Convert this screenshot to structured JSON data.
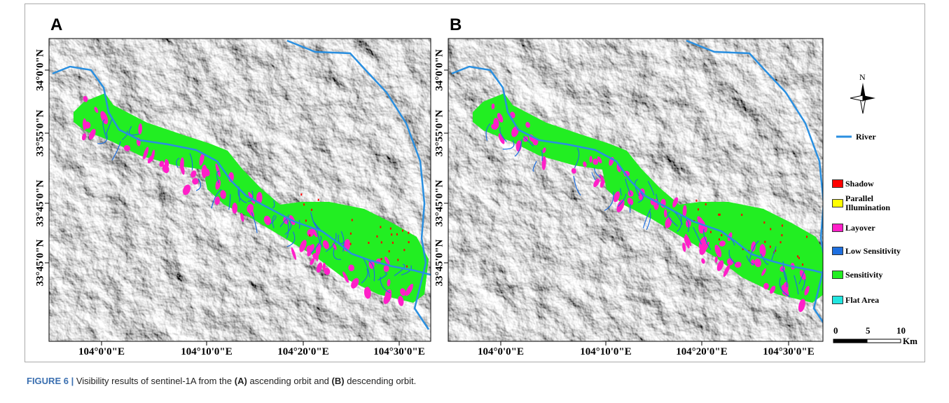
{
  "panels": [
    {
      "label": "A"
    },
    {
      "label": "B"
    }
  ],
  "x_labels": [
    "104°0'0\"E",
    "104°10'0\"E",
    "104°20'0\"E",
    "104°30'0\"E"
  ],
  "y_labels": [
    "34°0'0\"N",
    "33°55'0\"N",
    "33°45'0\"N",
    "33°45'0\"N"
  ],
  "legend": {
    "north": "N",
    "river": "River",
    "items": [
      {
        "name": "Shadow",
        "color": "#ff0000"
      },
      {
        "name": "Parallel Illumination",
        "color": "#ffff00"
      },
      {
        "name": "Layover",
        "color": "#ff1fc8"
      },
      {
        "name": "Low Sensitivity",
        "color": "#1e6fe0"
      },
      {
        "name": "Sensitivity",
        "color": "#22ee22"
      },
      {
        "name": "Flat Area",
        "color": "#22e6e0"
      }
    ]
  },
  "scale": {
    "labels": [
      "0",
      "5",
      "10"
    ],
    "unit": "Km"
  },
  "caption": {
    "figure": "FIGURE 6 |",
    "text1": "Visibility results of sentinel-1A from the",
    "a": "(A)",
    "text2": "ascending orbit and",
    "b": "(B)",
    "text3": "descending orbit."
  }
}
